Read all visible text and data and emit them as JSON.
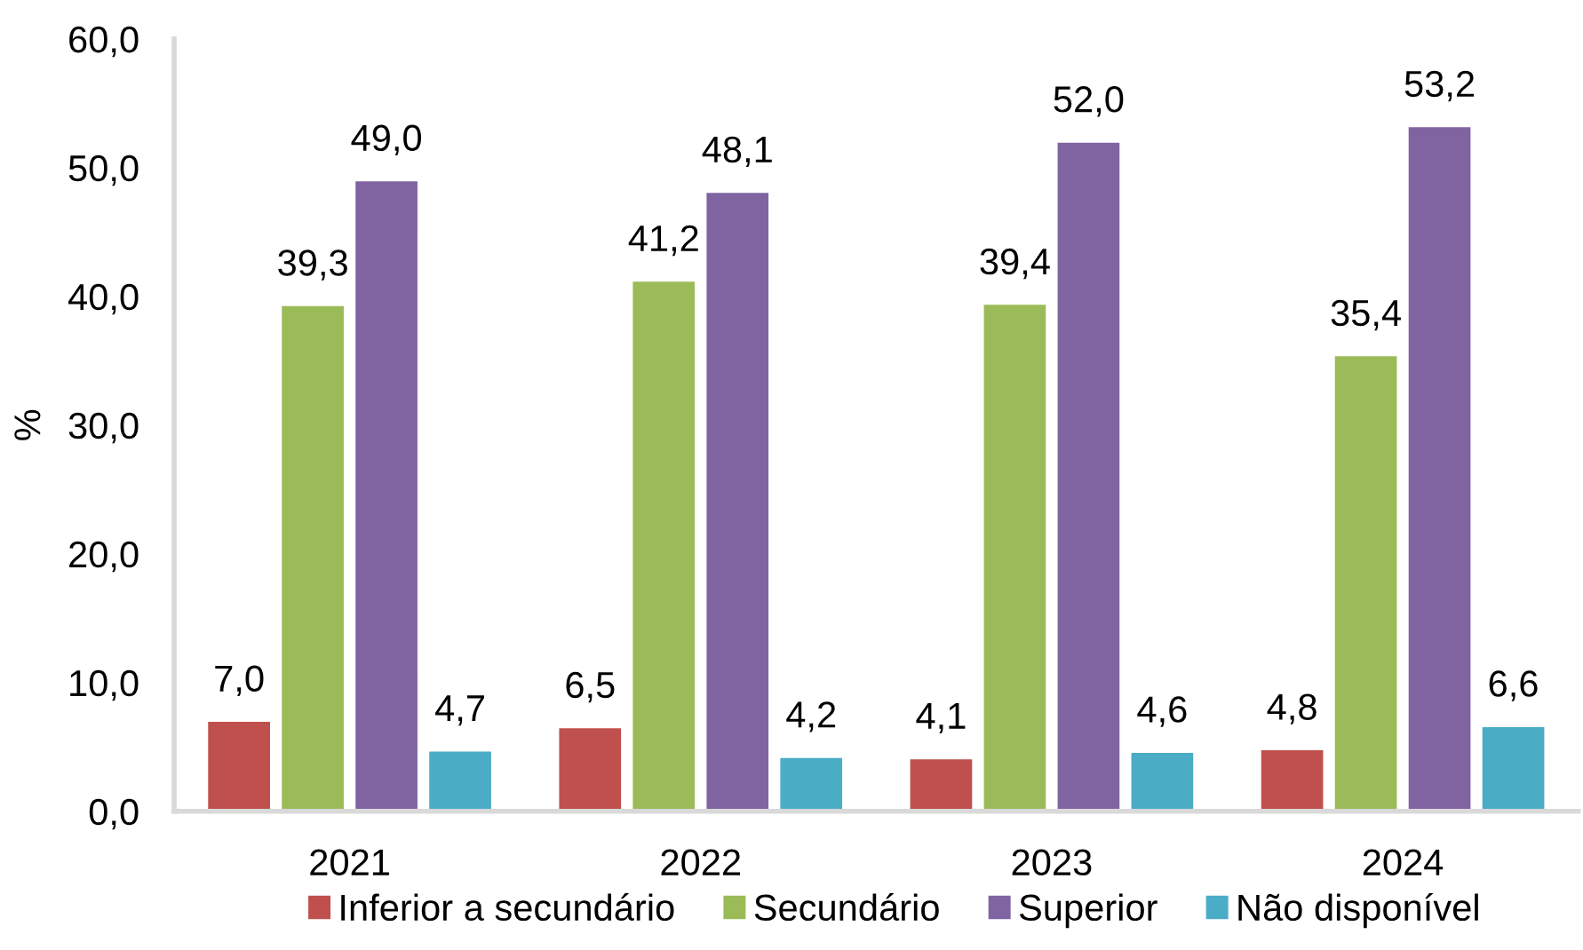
{
  "chart_data": {
    "type": "bar",
    "categories": [
      "2021",
      "2022",
      "2023",
      "2024"
    ],
    "ylabel": "%",
    "ylim": [
      0,
      60
    ],
    "yticks": [
      {
        "value": 0,
        "label": "0,0"
      },
      {
        "value": 10,
        "label": "10,0"
      },
      {
        "value": 20,
        "label": "20,0"
      },
      {
        "value": 30,
        "label": "30,0"
      },
      {
        "value": 40,
        "label": "40,0"
      },
      {
        "value": 50,
        "label": "50,0"
      },
      {
        "value": 60,
        "label": "60,0"
      }
    ],
    "legend": "bottom",
    "series": [
      {
        "name": "Inferior a secundário",
        "color": "#c0504d",
        "values": [
          7.0,
          6.5,
          4.1,
          4.8
        ],
        "value_labels": [
          "7,0",
          "6,5",
          "4,1",
          "4,8"
        ]
      },
      {
        "name": "Secundário",
        "color": "#9bbb59",
        "values": [
          39.3,
          41.2,
          39.4,
          35.4
        ],
        "value_labels": [
          "39,3",
          "41,2",
          "39,4",
          "35,4"
        ]
      },
      {
        "name": "Superior",
        "color": "#8064a2",
        "values": [
          49.0,
          48.1,
          52.0,
          53.2
        ],
        "value_labels": [
          "49,0",
          "48,1",
          "52,0",
          "53,2"
        ]
      },
      {
        "name": "Não disponível",
        "color": "#4bacc6",
        "values": [
          4.7,
          4.2,
          4.6,
          6.6
        ],
        "value_labels": [
          "4,7",
          "4,2",
          "4,6",
          "6,6"
        ]
      }
    ]
  }
}
